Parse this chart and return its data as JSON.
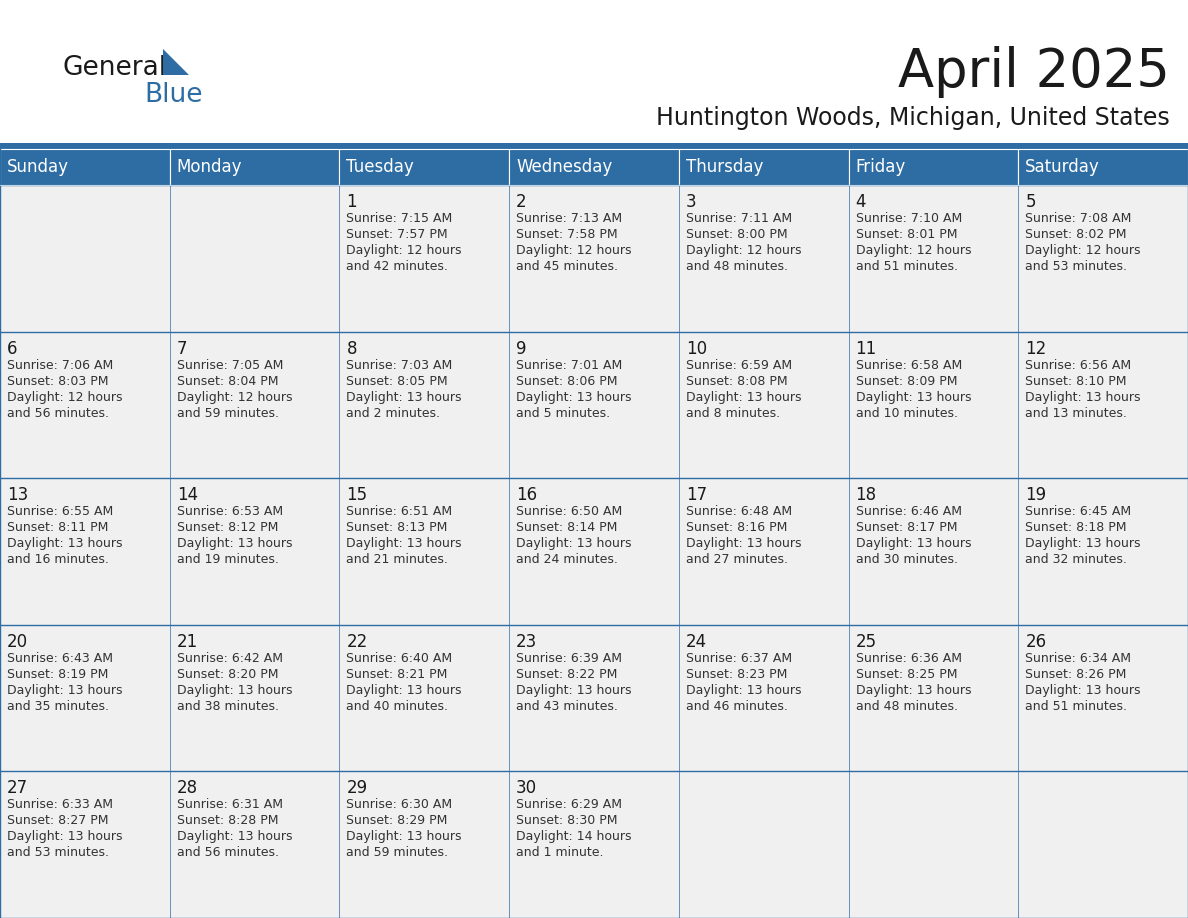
{
  "title": "April 2025",
  "subtitle": "Huntington Woods, Michigan, United States",
  "header_bg_color": "#2E6DA4",
  "header_text_color": "#FFFFFF",
  "cell_bg_color": "#F0F0F0",
  "cell_border_color": "#2E6DA4",
  "title_color": "#1a1a1a",
  "subtitle_color": "#1a1a1a",
  "cell_text_color": "#333333",
  "day_num_color": "#1a1a1a",
  "day_names": [
    "Sunday",
    "Monday",
    "Tuesday",
    "Wednesday",
    "Thursday",
    "Friday",
    "Saturday"
  ],
  "weeks": [
    [
      {
        "day": "",
        "sunrise": "",
        "sunset": "",
        "daylight": ""
      },
      {
        "day": "",
        "sunrise": "",
        "sunset": "",
        "daylight": ""
      },
      {
        "day": "1",
        "sunrise": "7:15 AM",
        "sunset": "7:57 PM",
        "daylight": "12 hours and 42 minutes."
      },
      {
        "day": "2",
        "sunrise": "7:13 AM",
        "sunset": "7:58 PM",
        "daylight": "12 hours and 45 minutes."
      },
      {
        "day": "3",
        "sunrise": "7:11 AM",
        "sunset": "8:00 PM",
        "daylight": "12 hours and 48 minutes."
      },
      {
        "day": "4",
        "sunrise": "7:10 AM",
        "sunset": "8:01 PM",
        "daylight": "12 hours and 51 minutes."
      },
      {
        "day": "5",
        "sunrise": "7:08 AM",
        "sunset": "8:02 PM",
        "daylight": "12 hours and 53 minutes."
      }
    ],
    [
      {
        "day": "6",
        "sunrise": "7:06 AM",
        "sunset": "8:03 PM",
        "daylight": "12 hours and 56 minutes."
      },
      {
        "day": "7",
        "sunrise": "7:05 AM",
        "sunset": "8:04 PM",
        "daylight": "12 hours and 59 minutes."
      },
      {
        "day": "8",
        "sunrise": "7:03 AM",
        "sunset": "8:05 PM",
        "daylight": "13 hours and 2 minutes."
      },
      {
        "day": "9",
        "sunrise": "7:01 AM",
        "sunset": "8:06 PM",
        "daylight": "13 hours and 5 minutes."
      },
      {
        "day": "10",
        "sunrise": "6:59 AM",
        "sunset": "8:08 PM",
        "daylight": "13 hours and 8 minutes."
      },
      {
        "day": "11",
        "sunrise": "6:58 AM",
        "sunset": "8:09 PM",
        "daylight": "13 hours and 10 minutes."
      },
      {
        "day": "12",
        "sunrise": "6:56 AM",
        "sunset": "8:10 PM",
        "daylight": "13 hours and 13 minutes."
      }
    ],
    [
      {
        "day": "13",
        "sunrise": "6:55 AM",
        "sunset": "8:11 PM",
        "daylight": "13 hours and 16 minutes."
      },
      {
        "day": "14",
        "sunrise": "6:53 AM",
        "sunset": "8:12 PM",
        "daylight": "13 hours and 19 minutes."
      },
      {
        "day": "15",
        "sunrise": "6:51 AM",
        "sunset": "8:13 PM",
        "daylight": "13 hours and 21 minutes."
      },
      {
        "day": "16",
        "sunrise": "6:50 AM",
        "sunset": "8:14 PM",
        "daylight": "13 hours and 24 minutes."
      },
      {
        "day": "17",
        "sunrise": "6:48 AM",
        "sunset": "8:16 PM",
        "daylight": "13 hours and 27 minutes."
      },
      {
        "day": "18",
        "sunrise": "6:46 AM",
        "sunset": "8:17 PM",
        "daylight": "13 hours and 30 minutes."
      },
      {
        "day": "19",
        "sunrise": "6:45 AM",
        "sunset": "8:18 PM",
        "daylight": "13 hours and 32 minutes."
      }
    ],
    [
      {
        "day": "20",
        "sunrise": "6:43 AM",
        "sunset": "8:19 PM",
        "daylight": "13 hours and 35 minutes."
      },
      {
        "day": "21",
        "sunrise": "6:42 AM",
        "sunset": "8:20 PM",
        "daylight": "13 hours and 38 minutes."
      },
      {
        "day": "22",
        "sunrise": "6:40 AM",
        "sunset": "8:21 PM",
        "daylight": "13 hours and 40 minutes."
      },
      {
        "day": "23",
        "sunrise": "6:39 AM",
        "sunset": "8:22 PM",
        "daylight": "13 hours and 43 minutes."
      },
      {
        "day": "24",
        "sunrise": "6:37 AM",
        "sunset": "8:23 PM",
        "daylight": "13 hours and 46 minutes."
      },
      {
        "day": "25",
        "sunrise": "6:36 AM",
        "sunset": "8:25 PM",
        "daylight": "13 hours and 48 minutes."
      },
      {
        "day": "26",
        "sunrise": "6:34 AM",
        "sunset": "8:26 PM",
        "daylight": "13 hours and 51 minutes."
      }
    ],
    [
      {
        "day": "27",
        "sunrise": "6:33 AM",
        "sunset": "8:27 PM",
        "daylight": "13 hours and 53 minutes."
      },
      {
        "day": "28",
        "sunrise": "6:31 AM",
        "sunset": "8:28 PM",
        "daylight": "13 hours and 56 minutes."
      },
      {
        "day": "29",
        "sunrise": "6:30 AM",
        "sunset": "8:29 PM",
        "daylight": "13 hours and 59 minutes."
      },
      {
        "day": "30",
        "sunrise": "6:29 AM",
        "sunset": "8:30 PM",
        "daylight": "14 hours and 1 minute."
      },
      {
        "day": "",
        "sunrise": "",
        "sunset": "",
        "daylight": ""
      },
      {
        "day": "",
        "sunrise": "",
        "sunset": "",
        "daylight": ""
      },
      {
        "day": "",
        "sunrise": "",
        "sunset": "",
        "daylight": ""
      }
    ]
  ],
  "logo_text1": "General",
  "logo_text2": "Blue",
  "logo_color1": "#1a1a1a",
  "logo_color2": "#2E6DA4",
  "logo_triangle_color": "#2E6DA4",
  "fig_width": 11.88,
  "fig_height": 9.18,
  "dpi": 100
}
